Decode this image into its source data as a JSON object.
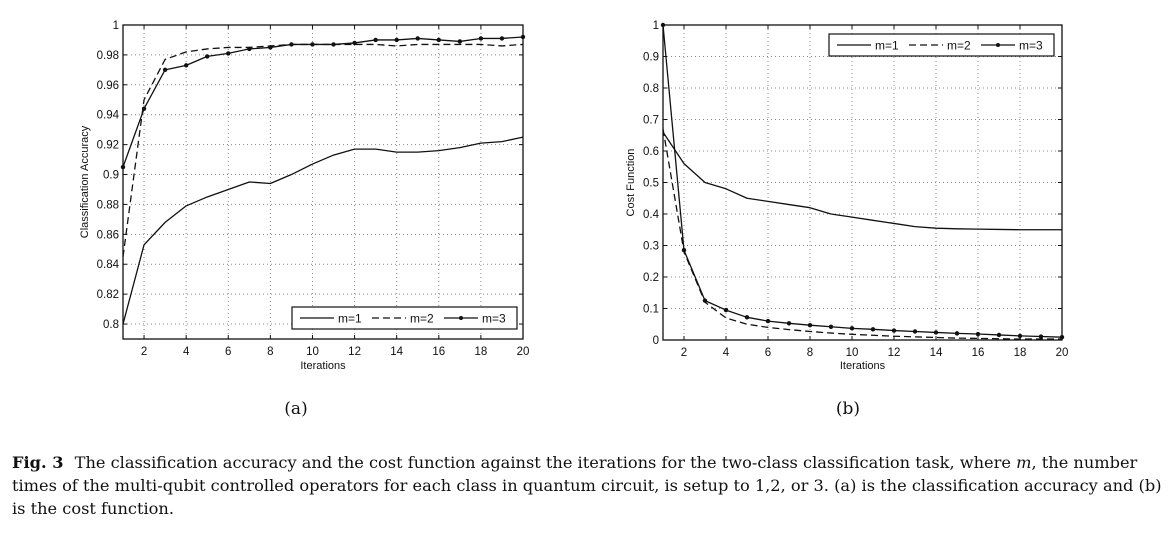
{
  "figure": {
    "label": "Fig. 3",
    "caption_part1": "The classification accuracy and the cost function against the iterations for the two-class classification task, where ",
    "caption_var": "m",
    "caption_part2": ", the number times of the multi-qubit controlled operators for each class in quantum circuit, is setup to 1,2, or 3. (a) is the classification accuracy and (b) is the cost function.",
    "subfigure_labels": [
      "(a)",
      "(b)"
    ]
  },
  "chart_data": [
    {
      "id": "a",
      "type": "line",
      "title": "",
      "xlabel": "Iterations",
      "ylabel": "Classification Accuracy",
      "xlim": [
        1,
        20
      ],
      "ylim": [
        0.79,
        1.0
      ],
      "xticks": [
        2,
        4,
        6,
        8,
        10,
        12,
        14,
        16,
        18,
        20
      ],
      "yticks": [
        0.8,
        0.82,
        0.84,
        0.86,
        0.88,
        0.9,
        0.92,
        0.94,
        0.96,
        0.98,
        1
      ],
      "ytick_labels": [
        "0.8",
        "0.82",
        "0.84",
        "0.86",
        "0.88",
        "0.9",
        "0.92",
        "0.94",
        "0.96",
        "0.98",
        "1"
      ],
      "grid": true,
      "legend_position": "lower right",
      "x": [
        1,
        2,
        3,
        4,
        5,
        6,
        7,
        8,
        9,
        10,
        11,
        12,
        13,
        14,
        15,
        16,
        17,
        18,
        19,
        20
      ],
      "series": [
        {
          "name": "m=1",
          "style": "solid",
          "marker": false,
          "values": [
            0.8,
            0.853,
            0.868,
            0.879,
            0.885,
            0.89,
            0.895,
            0.894,
            0.9,
            0.907,
            0.913,
            0.917,
            0.917,
            0.915,
            0.915,
            0.916,
            0.918,
            0.921,
            0.922,
            0.925
          ]
        },
        {
          "name": "m=2",
          "style": "dashed",
          "marker": false,
          "values": [
            0.845,
            0.95,
            0.977,
            0.982,
            0.984,
            0.985,
            0.985,
            0.986,
            0.987,
            0.987,
            0.987,
            0.987,
            0.987,
            0.986,
            0.987,
            0.987,
            0.987,
            0.987,
            0.986,
            0.987
          ]
        },
        {
          "name": "m=3",
          "style": "solid",
          "marker": true,
          "values": [
            0.905,
            0.944,
            0.97,
            0.973,
            0.979,
            0.981,
            0.984,
            0.985,
            0.987,
            0.987,
            0.987,
            0.988,
            0.99,
            0.99,
            0.991,
            0.99,
            0.989,
            0.991,
            0.991,
            0.992
          ]
        }
      ]
    },
    {
      "id": "b",
      "type": "line",
      "title": "",
      "xlabel": "Iterations",
      "ylabel": "Cost Function",
      "xlim": [
        1,
        20
      ],
      "ylim": [
        0,
        1
      ],
      "xticks": [
        2,
        4,
        6,
        8,
        10,
        12,
        14,
        16,
        18,
        20
      ],
      "yticks": [
        0,
        0.1,
        0.2,
        0.3,
        0.4,
        0.5,
        0.6,
        0.7,
        0.8,
        0.9,
        1
      ],
      "ytick_labels": [
        "0",
        "0.1",
        "0.2",
        "0.3",
        "0.4",
        "0.5",
        "0.6",
        "0.7",
        "0.8",
        "0.9",
        "1"
      ],
      "grid": true,
      "legend_position": "upper right",
      "x": [
        1,
        2,
        3,
        4,
        5,
        6,
        7,
        8,
        9,
        10,
        11,
        12,
        13,
        14,
        15,
        16,
        17,
        18,
        19,
        20
      ],
      "series": [
        {
          "name": "m=1",
          "style": "solid",
          "marker": false,
          "values": [
            0.66,
            0.56,
            0.5,
            0.48,
            0.45,
            0.44,
            0.43,
            0.42,
            0.4,
            0.39,
            0.38,
            0.37,
            0.36,
            0.355,
            0.353,
            0.352,
            0.351,
            0.35,
            0.35,
            0.35
          ]
        },
        {
          "name": "m=2",
          "style": "dashed",
          "marker": false,
          "values": [
            0.67,
            0.28,
            0.12,
            0.07,
            0.05,
            0.04,
            0.033,
            0.027,
            0.022,
            0.018,
            0.015,
            0.012,
            0.01,
            0.008,
            0.006,
            0.005,
            0.004,
            0.003,
            0.003,
            0.003
          ]
        },
        {
          "name": "m=3",
          "style": "solid",
          "marker": true,
          "values": [
            1.0,
            0.285,
            0.125,
            0.095,
            0.072,
            0.06,
            0.053,
            0.047,
            0.042,
            0.037,
            0.034,
            0.03,
            0.027,
            0.024,
            0.021,
            0.019,
            0.016,
            0.013,
            0.011,
            0.009
          ]
        }
      ]
    }
  ],
  "colors": {
    "line": "#111111",
    "grid": "#888888",
    "background": "#ffffff"
  }
}
